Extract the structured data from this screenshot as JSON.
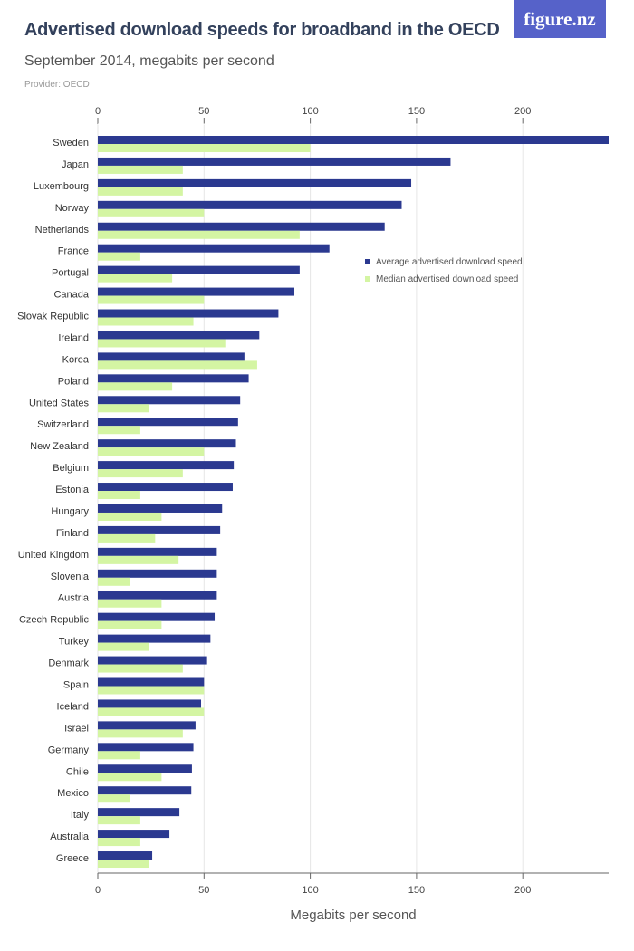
{
  "header": {
    "title": "Advertised download speeds for broadband in the OECD",
    "subtitle": "September 2014, megabits per second",
    "provider": "Provider: OECD",
    "logo": "figure.nz"
  },
  "chart_data": {
    "type": "bar",
    "orientation": "horizontal",
    "title": "Advertised download speeds for broadband in the OECD",
    "subtitle": "September 2014, megabits per second",
    "xlabel": "Megabits per second",
    "xlim": [
      0,
      240
    ],
    "xticks": [
      0,
      50,
      100,
      150,
      200
    ],
    "grid": true,
    "legend_position": "top-right",
    "colors": {
      "avg": "#2b3990",
      "median": "#d4f5a3"
    },
    "categories": [
      "Sweden",
      "Japan",
      "Luxembourg",
      "Norway",
      "Netherlands",
      "France",
      "Portugal",
      "Canada",
      "Slovak Republic",
      "Ireland",
      "Korea",
      "Poland",
      "United States",
      "Switzerland",
      "New Zealand",
      "Belgium",
      "Estonia",
      "Hungary",
      "Finland",
      "United Kingdom",
      "Slovenia",
      "Austria",
      "Czech Republic",
      "Turkey",
      "Denmark",
      "Spain",
      "Iceland",
      "Israel",
      "Germany",
      "Chile",
      "Mexico",
      "Italy",
      "Australia",
      "Greece"
    ],
    "series": [
      {
        "name": "Average advertised download speed",
        "values": [
          240.6,
          166,
          147.5,
          143,
          135,
          109,
          95,
          92.5,
          85,
          76,
          69,
          71,
          67,
          66,
          65,
          64,
          63.5,
          58.5,
          57.6,
          56,
          56,
          56,
          55,
          53,
          51,
          50,
          48.6,
          46,
          45,
          44.3,
          44,
          38.4,
          33.7,
          25.6
        ]
      },
      {
        "name": "Median advertised download speed",
        "values": [
          100,
          40,
          40,
          50,
          95,
          20,
          35,
          50,
          45,
          60,
          75,
          35,
          24,
          20,
          50,
          40,
          20,
          30,
          27,
          38,
          15,
          30,
          30,
          24,
          40,
          50,
          50,
          40,
          20,
          30,
          15,
          20,
          20,
          24
        ]
      }
    ]
  }
}
